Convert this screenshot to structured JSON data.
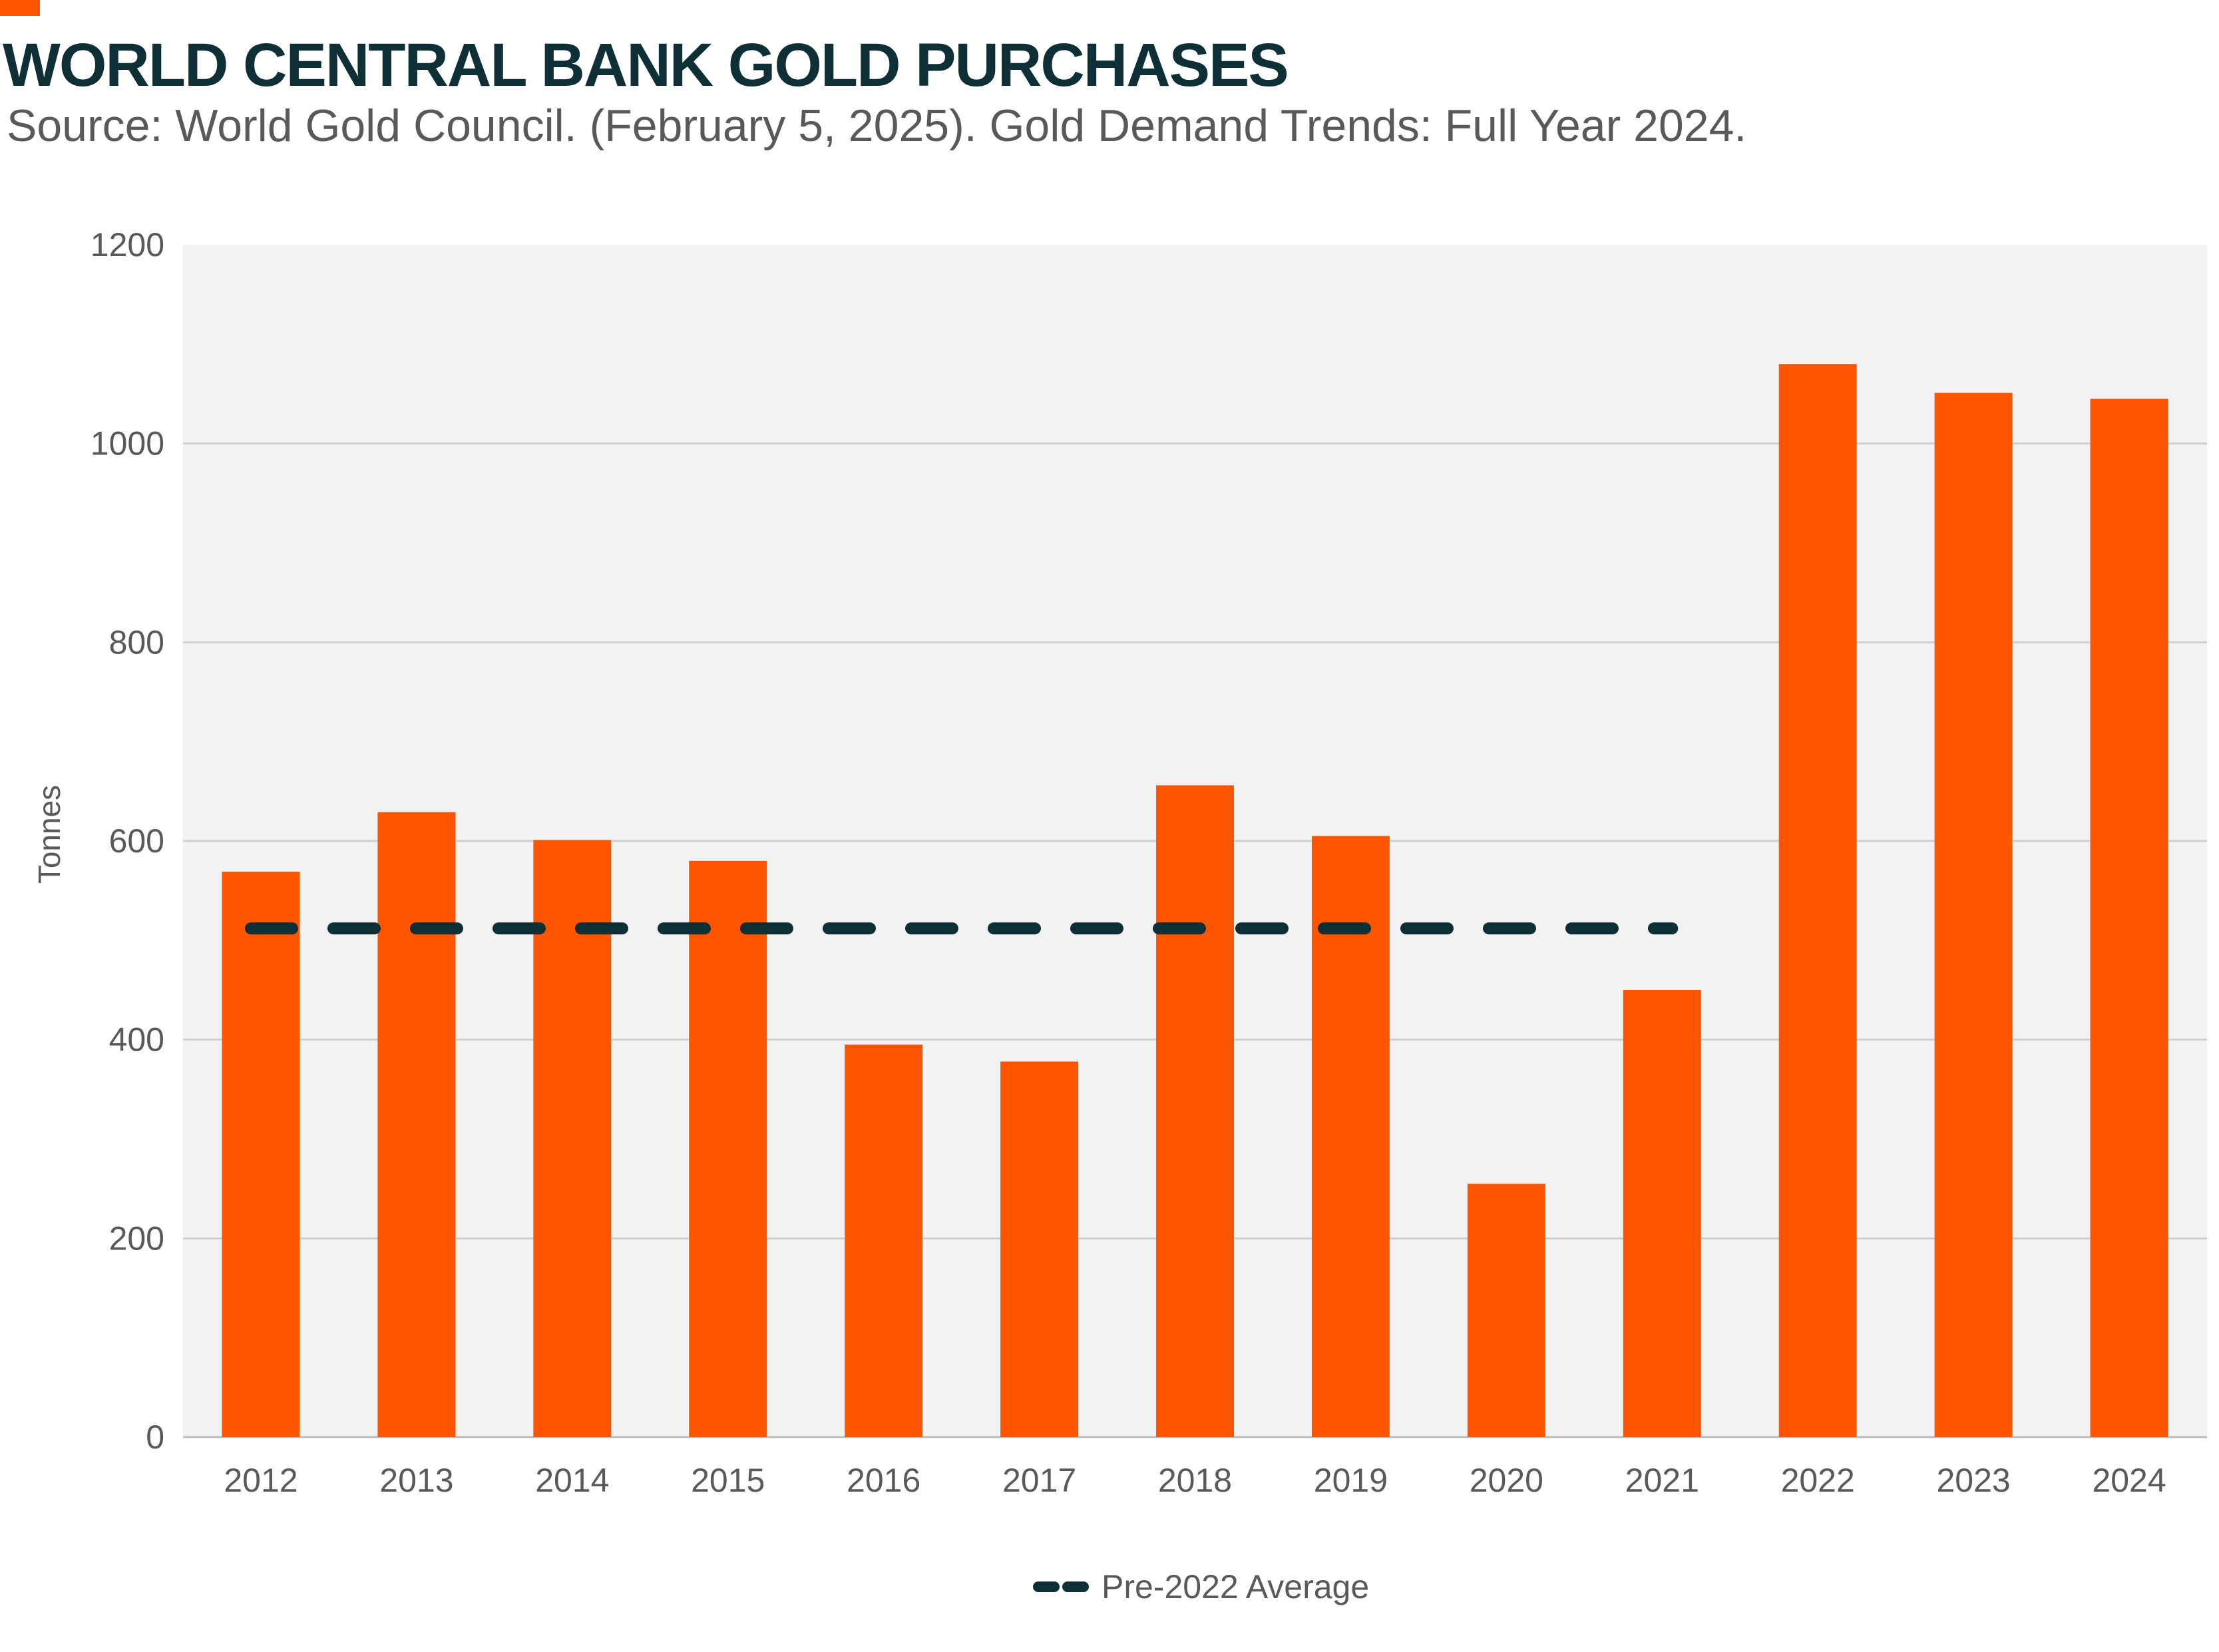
{
  "header": {
    "title": "WORLD CENTRAL BANK GOLD PURCHASES",
    "subtitle": "Source: World Gold Council. (February 5, 2025). Gold Demand Trends: Full Year 2024."
  },
  "colors": {
    "bar": "#FF5500",
    "average_line": "#0E2F35",
    "plot_background": "#F2F2F2",
    "gridline": "#D0D0D0",
    "accent": "#FF5500"
  },
  "chart_data": {
    "type": "bar",
    "title": "WORLD CENTRAL BANK GOLD PURCHASES",
    "xlabel": "",
    "ylabel": "Tonnes",
    "ylim": [
      0,
      1200
    ],
    "yticks": [
      0,
      200,
      400,
      600,
      800,
      1000,
      1200
    ],
    "ytick_labels": [
      "0",
      "200",
      "400",
      "600",
      "800",
      "1000",
      "1200"
    ],
    "grid": true,
    "categories": [
      "2012",
      "2013",
      "2014",
      "2015",
      "2016",
      "2017",
      "2018",
      "2019",
      "2020",
      "2021",
      "2022",
      "2023",
      "2024"
    ],
    "values": [
      569,
      629,
      601,
      580,
      395,
      378,
      656,
      605,
      255,
      450,
      1080,
      1051,
      1045
    ],
    "reference_line": {
      "name": "Pre-2022 Average",
      "value": 512,
      "from": "2012",
      "to": "2021",
      "style": "dashed"
    },
    "legend": {
      "position": "bottom-center",
      "entries": [
        "Pre-2022 Average"
      ]
    }
  }
}
